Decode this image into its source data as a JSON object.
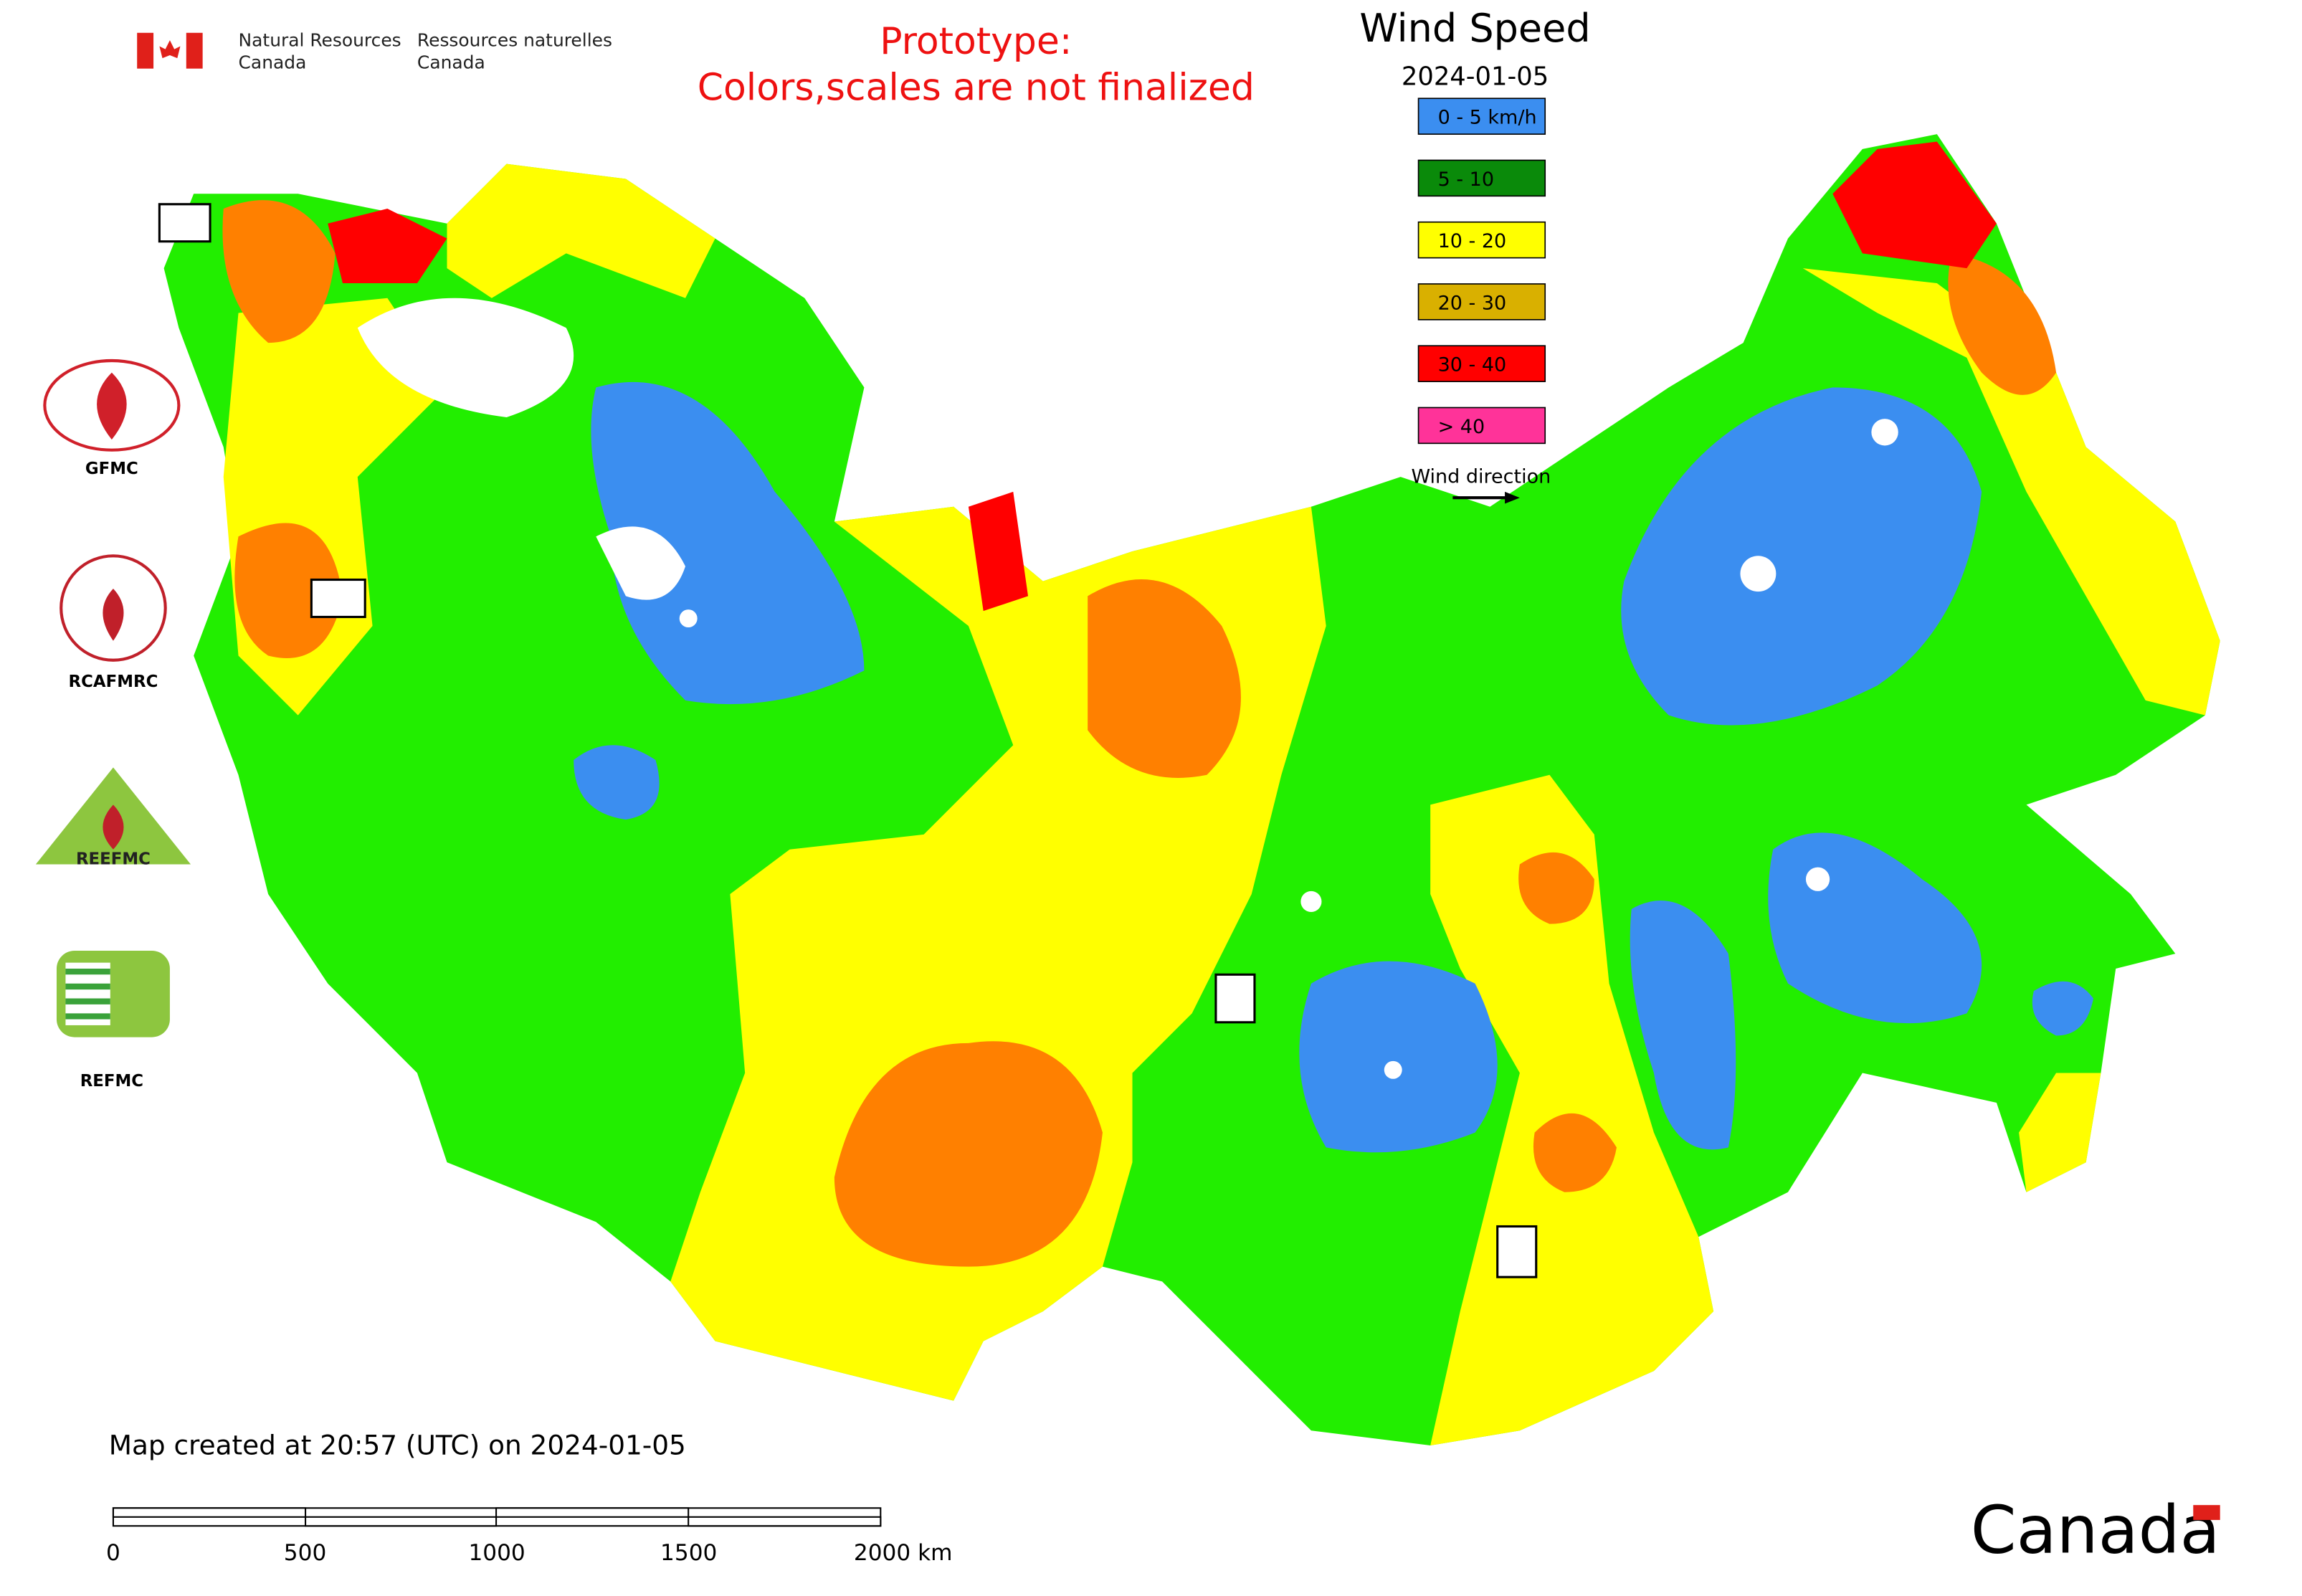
{
  "header": {
    "agency_en": [
      "Natural Resources",
      "Canada"
    ],
    "agency_fr": [
      "Ressources naturelles",
      "Canada"
    ]
  },
  "notice": [
    "Prototype:",
    "Colors,scales are not finalized"
  ],
  "legend": {
    "title": "Wind Speed",
    "date": "2024-01-05",
    "items": [
      {
        "label": "0 - 5 km/h",
        "color": "#3b8ef0"
      },
      {
        "label": "5 - 10",
        "color": "#0a8a0a"
      },
      {
        "label": "10 - 20",
        "color": "#ffff00"
      },
      {
        "label": "20 - 30",
        "color": "#d9b000"
      },
      {
        "label": "30 - 40",
        "color": "#ff0000"
      },
      {
        "label": "> 40",
        "color": "#ff3399"
      }
    ],
    "direction_label": "Wind direction"
  },
  "logos": [
    "GFMC",
    "RCAFMRC",
    "REEFMC",
    "REFMC"
  ],
  "footer": {
    "created": "Map created at 20:57 (UTC) on 2024-01-05",
    "scale_labels": [
      "0",
      "500",
      "1000",
      "1500",
      "2000 km"
    ],
    "wordmark": "Canada"
  }
}
